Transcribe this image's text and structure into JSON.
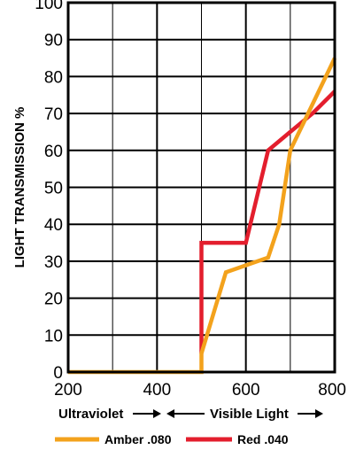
{
  "chart_data": {
    "type": "line",
    "title": "",
    "xlabel": "",
    "ylabel": "LIGHT TRANSMISSION %",
    "xlim": [
      200,
      800
    ],
    "ylim": [
      0,
      100
    ],
    "x_ticks": [
      200,
      400,
      600,
      800
    ],
    "y_ticks": [
      0,
      10,
      20,
      30,
      40,
      50,
      60,
      70,
      80,
      90,
      100
    ],
    "x_grid_step": 100,
    "grid": true,
    "band_labels": {
      "ultraviolet": "Ultraviolet",
      "visible": "Visible Light"
    },
    "legend_position": "bottom",
    "series": [
      {
        "name": "Amber .080",
        "color": "#F3A21C",
        "points": [
          [
            200,
            0
          ],
          [
            500,
            0
          ],
          [
            500,
            5
          ],
          [
            555,
            27
          ],
          [
            650,
            31
          ],
          [
            675,
            40
          ],
          [
            700,
            60
          ],
          [
            740,
            70
          ],
          [
            800,
            85
          ]
        ]
      },
      {
        "name": "Red .040",
        "color": "#E31E2D",
        "points": [
          [
            500,
            5
          ],
          [
            500,
            35
          ],
          [
            600,
            35
          ],
          [
            650,
            60
          ],
          [
            700,
            65
          ],
          [
            750,
            70
          ],
          [
            800,
            76
          ]
        ]
      }
    ]
  }
}
